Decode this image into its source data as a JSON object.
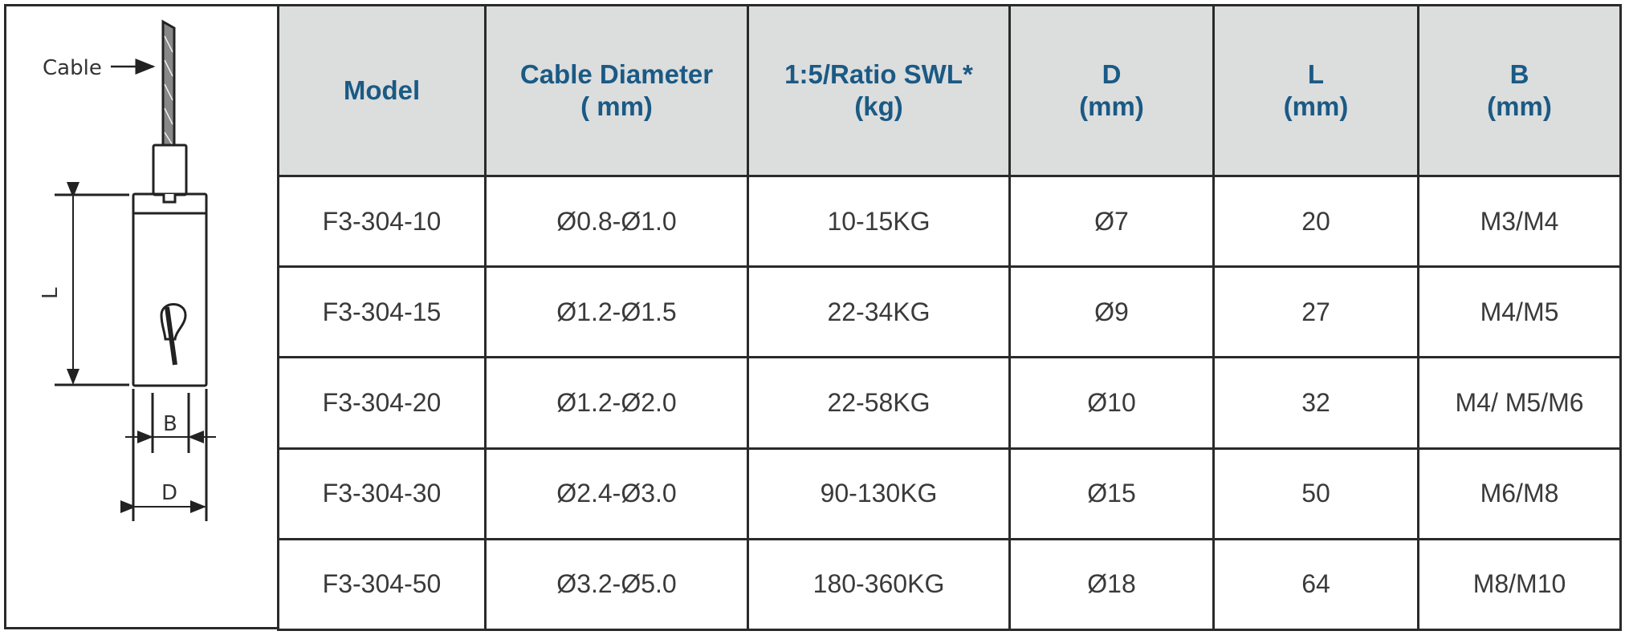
{
  "diagram": {
    "cable_label": "Cable",
    "dim_L": "L",
    "dim_B": "B",
    "dim_D": "D"
  },
  "table": {
    "headers": [
      {
        "line1": "Model",
        "line2": ""
      },
      {
        "line1": "Cable Diameter",
        "line2": "( mm)"
      },
      {
        "line1": "1:5/Ratio  SWL*",
        "line2": "(kg)"
      },
      {
        "line1": "D",
        "line2": "(mm)"
      },
      {
        "line1": "L",
        "line2": "(mm)"
      },
      {
        "line1": "B",
        "line2": "(mm)"
      }
    ],
    "rows": [
      [
        "F3-304-10",
        "Ø0.8-Ø1.0",
        "10-15KG",
        "Ø7",
        "20",
        "M3/M4"
      ],
      [
        "F3-304-15",
        "Ø1.2-Ø1.5",
        "22-34KG",
        "Ø9",
        "27",
        "M4/M5"
      ],
      [
        "F3-304-20",
        "Ø1.2-Ø2.0",
        "22-58KG",
        "Ø10",
        "32",
        "M4/ M5/M6"
      ],
      [
        "F3-304-30",
        "Ø2.4-Ø3.0",
        "90-130KG",
        "Ø15",
        "50",
        "M6/M8"
      ],
      [
        "F3-304-50",
        "Ø3.2-Ø5.0",
        "180-360KG",
        "Ø18",
        "64",
        "M8/M10"
      ]
    ]
  },
  "colors": {
    "header_text": "#1a5a85",
    "header_bg": "#dcdddd",
    "body_text": "#3a3a3a"
  }
}
